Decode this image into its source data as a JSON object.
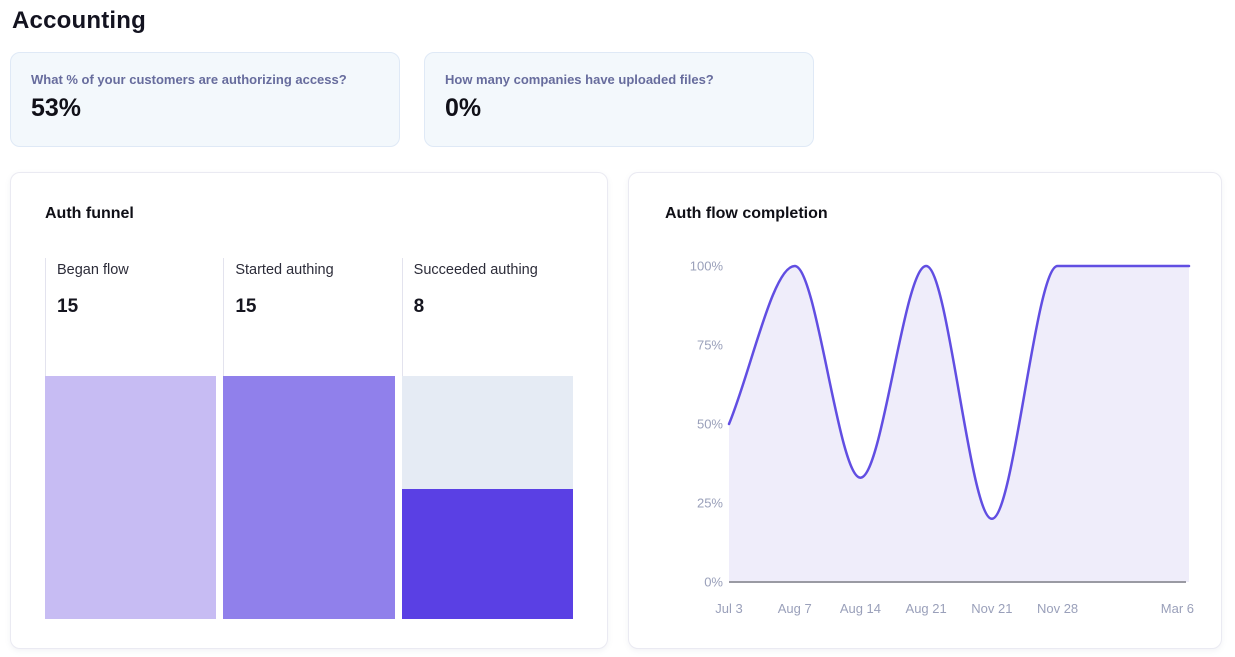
{
  "page": {
    "title": "Accounting"
  },
  "stats": [
    {
      "question": "What % of your customers are authorizing access?",
      "value": "53%"
    },
    {
      "question": "How many companies have uploaded files?",
      "value": "0%"
    }
  ],
  "funnel": {
    "title": "Auth funnel",
    "max": 15,
    "track_color": "#e5ebf4",
    "stages": [
      {
        "label": "Began flow",
        "value": 15,
        "color": "#c7bcf3"
      },
      {
        "label": "Started authing",
        "value": 15,
        "color": "#9080eb"
      },
      {
        "label": "Succeeded authing",
        "value": 8,
        "color": "#5a40e4"
      }
    ]
  },
  "chart_data": {
    "type": "area",
    "title": "Auth flow completion",
    "x": [
      "Jul 3",
      "Aug 7",
      "Aug 14",
      "Aug 21",
      "Nov 21",
      "Nov 28",
      "",
      "Mar 6"
    ],
    "values": [
      50,
      100,
      33,
      100,
      20,
      100,
      100,
      100
    ],
    "xlabel": "",
    "ylabel": "",
    "ylim": [
      0,
      100
    ],
    "yticks": [
      0,
      25,
      50,
      75,
      100
    ],
    "ytick_suffix": "%",
    "grid": false,
    "legend": false,
    "line_color": "#614ee2",
    "fill_color": "#efedfa",
    "axis_line_color": "#9a9aa3",
    "tick_label_color": "#9aa0ba"
  }
}
